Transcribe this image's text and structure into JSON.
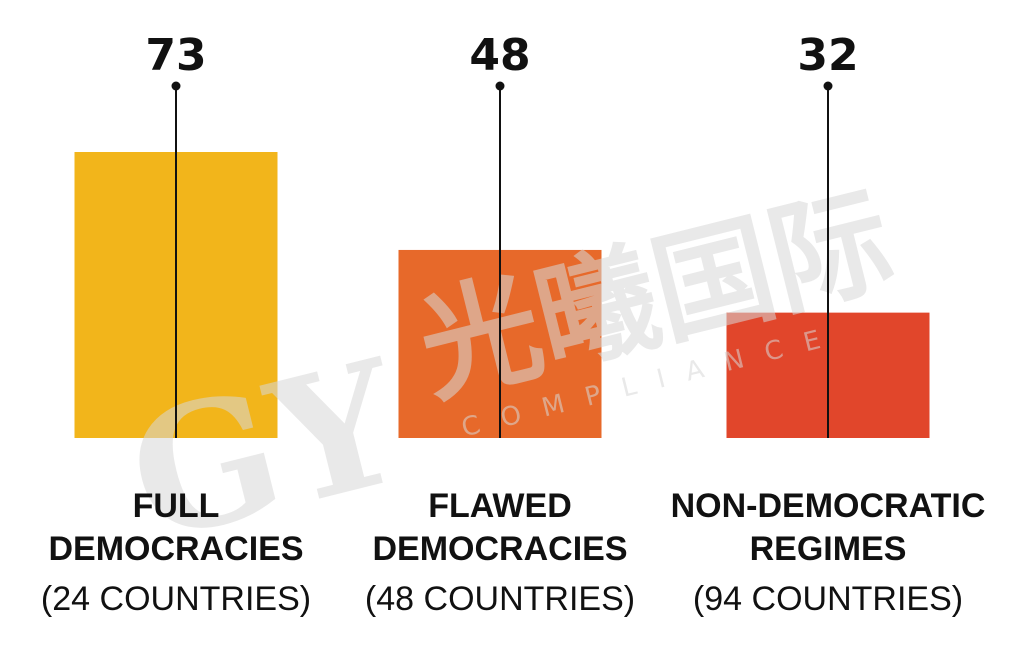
{
  "chart_data": {
    "type": "bar",
    "categories": [
      {
        "lines": [
          "FULL",
          "DEMOCRACIES"
        ],
        "sub": "(24 COUNTRIES)"
      },
      {
        "lines": [
          "FLAWED",
          "DEMOCRACIES"
        ],
        "sub": "(48 COUNTRIES)"
      },
      {
        "lines": [
          "NON-DEMOCRATIC",
          "REGIMES"
        ],
        "sub": "(94 COUNTRIES)"
      }
    ],
    "values": [
      73,
      48,
      32
    ],
    "colors": [
      "#f2b51b",
      "#e7692a",
      "#e1462b"
    ],
    "ylim": [
      0,
      80
    ],
    "grid": false,
    "legend": "none"
  },
  "watermark": {
    "text": "光曦国际",
    "sub": "COMPLIANCE",
    "logo": "GY"
  }
}
